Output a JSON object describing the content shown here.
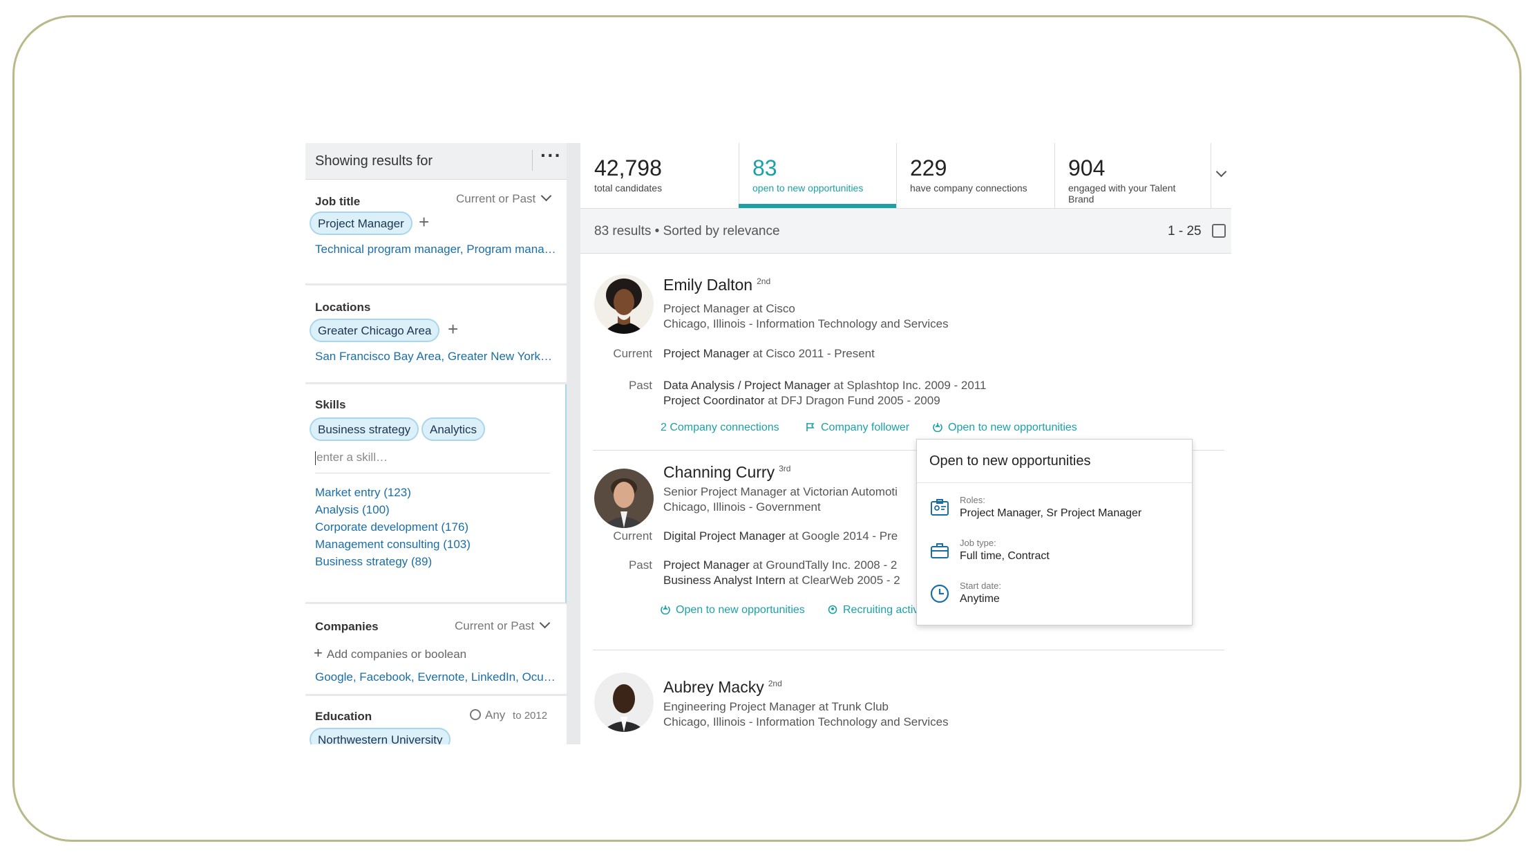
{
  "sidebar": {
    "header_title": "Showing results for",
    "job_title": {
      "label": "Job title",
      "filter": "Current or Past",
      "chip": "Project Manager",
      "suggestions": "Technical program manager, Program mana…"
    },
    "locations": {
      "label": "Locations",
      "chip": "Greater Chicago Area",
      "suggestions": "San Francisco Bay Area, Greater New York…"
    },
    "skills": {
      "label": "Skills",
      "chips": [
        "Business strategy",
        "Analytics"
      ],
      "input_placeholder": "enter a skill…",
      "suggestions": [
        "Market entry (123)",
        "Analysis (100)",
        "Corporate development (176)",
        "Management consulting (103)",
        "Business strategy (89)"
      ]
    },
    "companies": {
      "label": "Companies",
      "filter": "Current or Past",
      "add_label": "Add companies or boolean",
      "suggestions": "Google, Facebook, Evernote, LinkedIn, Ocu…"
    },
    "education": {
      "label": "Education",
      "range_any": "Any",
      "range_to": "to 2012",
      "chip": "Northwestern University"
    }
  },
  "stats": [
    {
      "num": "42,798",
      "label": "total candidates"
    },
    {
      "num": "83",
      "label": "open to new opportunities"
    },
    {
      "num": "229",
      "label": "have company connections"
    },
    {
      "num": "904",
      "label": "engaged with your Talent Brand"
    }
  ],
  "results": {
    "summary": "83 results • Sorted by relevance",
    "range": "1 - 25"
  },
  "candidates": [
    {
      "name": "Emily Dalton",
      "degree": "2nd",
      "headline": "Project Manager at Cisco",
      "location": "Chicago, Illinois - Information Technology and Services",
      "current_label": "Current",
      "current": {
        "role": "Project Manager",
        "rest": " at Cisco  2011 - Present"
      },
      "past_label": "Past",
      "past": [
        {
          "role": "Data Analysis / Project Manager",
          "rest": " at Splashtop Inc.  2009 - 2011"
        },
        {
          "role": "Project Coordinator",
          "rest": " at DFJ Dragon Fund  2005 - 2009"
        }
      ],
      "actions": [
        "2 Company connections",
        "Company follower",
        "Open to new opportunities"
      ]
    },
    {
      "name": "Channing Curry",
      "degree": "3rd",
      "headline": "Senior Project Manager at Victorian Automoti",
      "location": "Chicago, Illinois - Government",
      "current_label": "Current",
      "current": {
        "role": "Digital Project Manager",
        "rest": " at Google  2014 - Pre"
      },
      "past_label": "Past",
      "past": [
        {
          "role": "Project Manager",
          "rest": " at GroundTally Inc.  2008 - 2"
        },
        {
          "role": "Business Analyst Intern",
          "rest": " at ClearWeb  2005 - 2"
        }
      ],
      "actions": [
        "Open to new opportunities",
        "Recruiting activity"
      ]
    },
    {
      "name": "Aubrey Macky",
      "degree": "2nd",
      "headline": "Engineering Project Manager at Trunk Club",
      "location": "Chicago, Illinois - Information Technology and Services"
    }
  ],
  "popup": {
    "title": "Open to new opportunities",
    "rows": [
      {
        "label": "Roles:",
        "value": "Project Manager, Sr Project Manager"
      },
      {
        "label": "Job type:",
        "value": "Full time, Contract"
      },
      {
        "label": "Start date:",
        "value": "Anytime"
      }
    ]
  },
  "colors": {
    "accent": "#1aa1a8",
    "link": "#1a6ea8",
    "chip_bg": "#dcf0fa",
    "frame": "#b9b98a"
  }
}
